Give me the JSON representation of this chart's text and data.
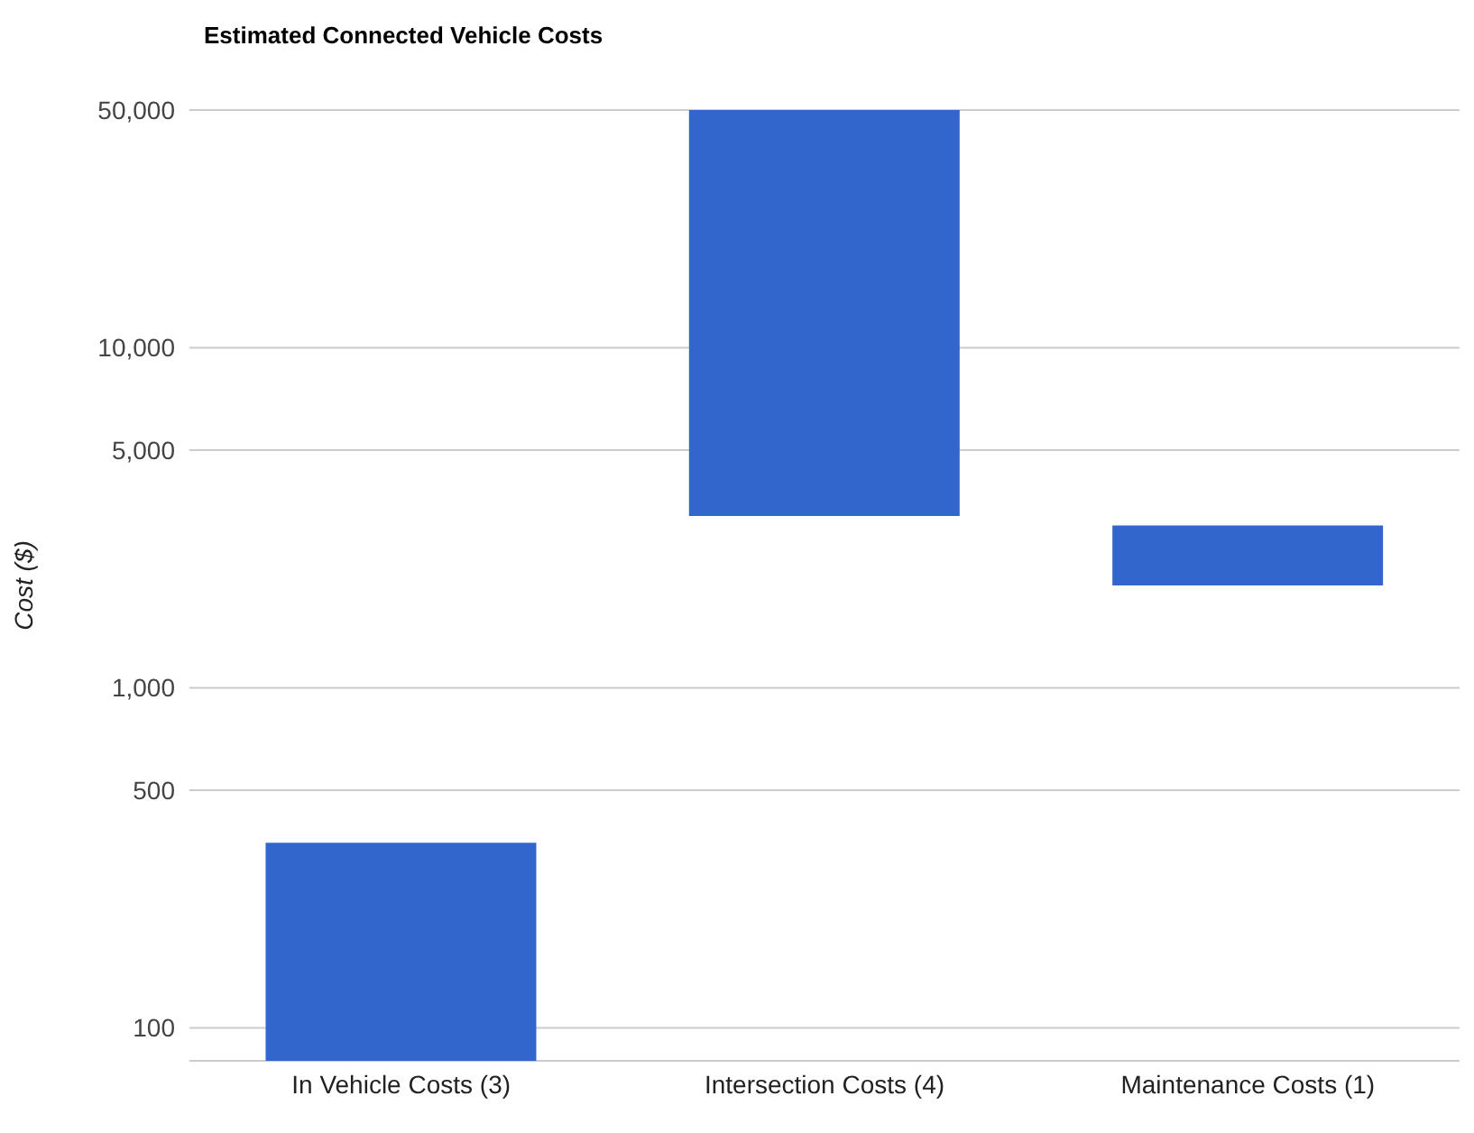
{
  "chart_data": {
    "type": "bar",
    "title": "Estimated Connected Vehicle Costs",
    "ylabel": "Cost ($)",
    "categories": [
      "In Vehicle Costs (3)",
      "Intersection Costs (4)",
      "Maintenance Costs (1)"
    ],
    "base": [
      80,
      3200,
      2000
    ],
    "values": [
      270,
      46800,
      1000
    ],
    "color": "#3366cc",
    "log": true,
    "ylim": [
      80,
      50000
    ],
    "yticks": [
      {
        "value": 100,
        "label": "100"
      },
      {
        "value": 500,
        "label": "500"
      },
      {
        "value": 1000,
        "label": "1,000"
      },
      {
        "value": 5000,
        "label": "5,000"
      },
      {
        "value": 10000,
        "label": "10,000"
      },
      {
        "value": 50000,
        "label": "50,000"
      }
    ],
    "grid": "y"
  }
}
